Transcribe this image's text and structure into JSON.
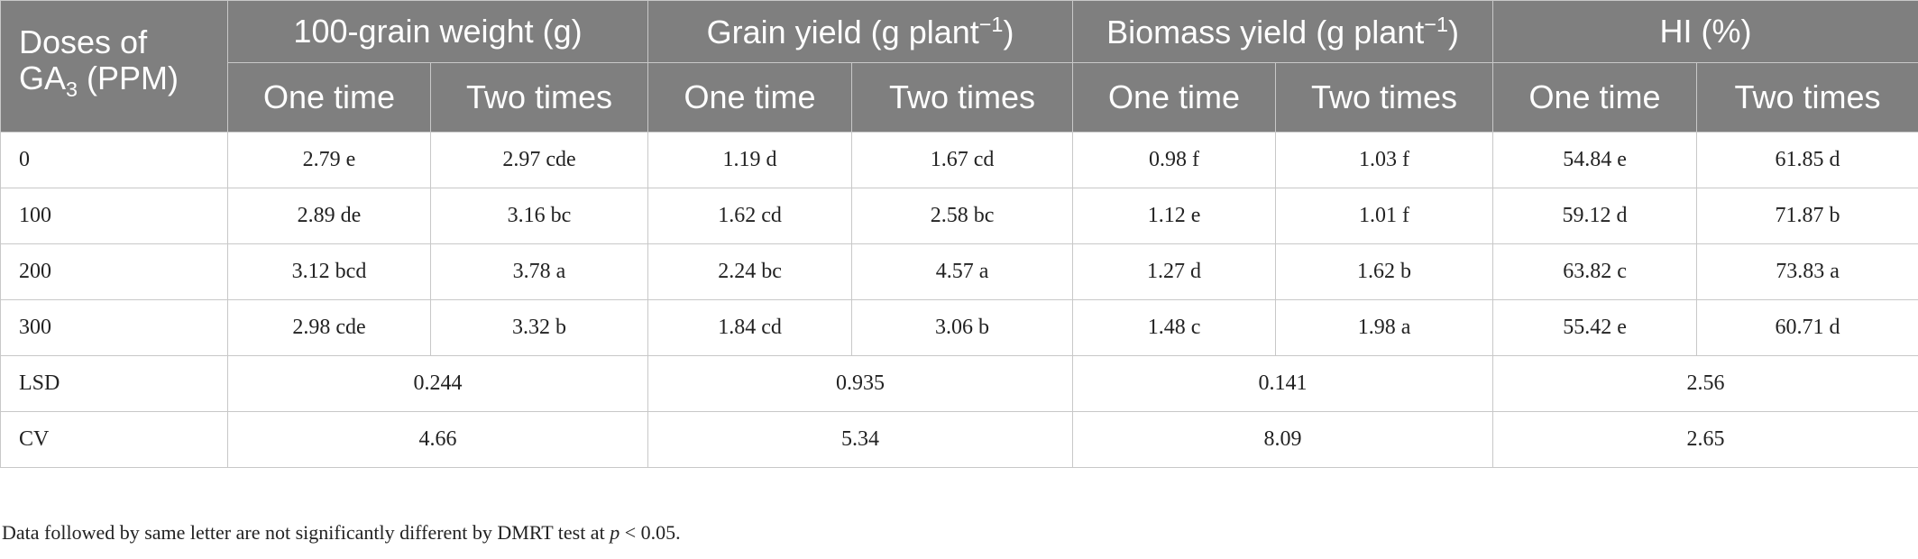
{
  "header": {
    "stub_line1": "Doses of",
    "stub_ga": "GA",
    "stub_sub": "3",
    "stub_rest": " (PPM)",
    "groups": [
      {
        "label": "100-grain weight (g)",
        "sup": ""
      },
      {
        "label": "Grain yield (g plant",
        "sup": "−1",
        "close": ")"
      },
      {
        "label": "Biomass yield (g plant",
        "sup": "−1",
        "close": ")"
      },
      {
        "label": "HI (%)",
        "sup": ""
      }
    ],
    "sub_one": "One time",
    "sub_two": "Two times"
  },
  "rows": [
    {
      "dose": "0",
      "values": [
        "2.79 e",
        "2.97 cde",
        "1.19 d",
        "1.67 cd",
        "0.98 f",
        "1.03 f",
        "54.84 e",
        "61.85 d"
      ]
    },
    {
      "dose": "100",
      "values": [
        "2.89 de",
        "3.16 bc",
        "1.62 cd",
        "2.58 bc",
        "1.12 e",
        "1.01 f",
        "59.12 d",
        "71.87 b"
      ]
    },
    {
      "dose": "200",
      "values": [
        "3.12 bcd",
        "3.78 a",
        "2.24 bc",
        "4.57 a",
        "1.27 d",
        "1.62 b",
        "63.82 c",
        "73.83 a"
      ]
    },
    {
      "dose": "300",
      "values": [
        "2.98 cde",
        "3.32 b",
        "1.84 cd",
        "3.06 b",
        "1.48 c",
        "1.98 a",
        "55.42 e",
        "60.71 d"
      ]
    }
  ],
  "stats": [
    {
      "label": "LSD",
      "values": [
        "0.244",
        "0.935",
        "0.141",
        "2.56"
      ]
    },
    {
      "label": "CV",
      "values": [
        "4.66",
        "5.34",
        "8.09",
        "2.65"
      ]
    }
  ],
  "footnote": {
    "text": "Data followed by same letter are not significantly different by DMRT test at ",
    "p": "p",
    "threshold": " < 0.05."
  }
}
